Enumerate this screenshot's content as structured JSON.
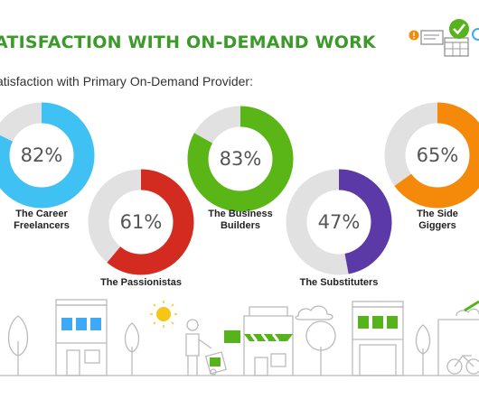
{
  "header": {
    "title": "ATISFACTION WITH ON-DEMAND WORK"
  },
  "chart_data": {
    "type": "donut",
    "title": "ATISFACTION WITH ON-DEMAND WORK",
    "subtitle": "atisfaction with Primary On-Demand Provider:",
    "unit": "%",
    "track_color": "#e1e1e1",
    "segments": [
      {
        "label_lines": [
          "The Career",
          "Freelancers"
        ],
        "value": 82,
        "display": "82%",
        "color": "#3fc1f3"
      },
      {
        "label_lines": [
          "The Passionistas"
        ],
        "value": 61,
        "display": "61%",
        "color": "#d42b20"
      },
      {
        "label_lines": [
          "The Business",
          "Builders"
        ],
        "value": 83,
        "display": "83%",
        "color": "#5ab517"
      },
      {
        "label_lines": [
          "The Substituters"
        ],
        "value": 47,
        "display": "47%",
        "color": "#5b3aa8"
      },
      {
        "label_lines": [
          "The Side",
          "Giggers"
        ],
        "value": 65,
        "display": "65%",
        "color": "#f58a0a"
      }
    ]
  },
  "colors": {
    "title_green": "#3c9a2a",
    "scene_line": "#bbbbbb",
    "window_blue": "#3fa9f5",
    "window_green": "#57b31c",
    "sun": "#f5c518"
  },
  "icons": [
    "alert-icon",
    "checkmark-badge-icon",
    "calendar-icon"
  ]
}
